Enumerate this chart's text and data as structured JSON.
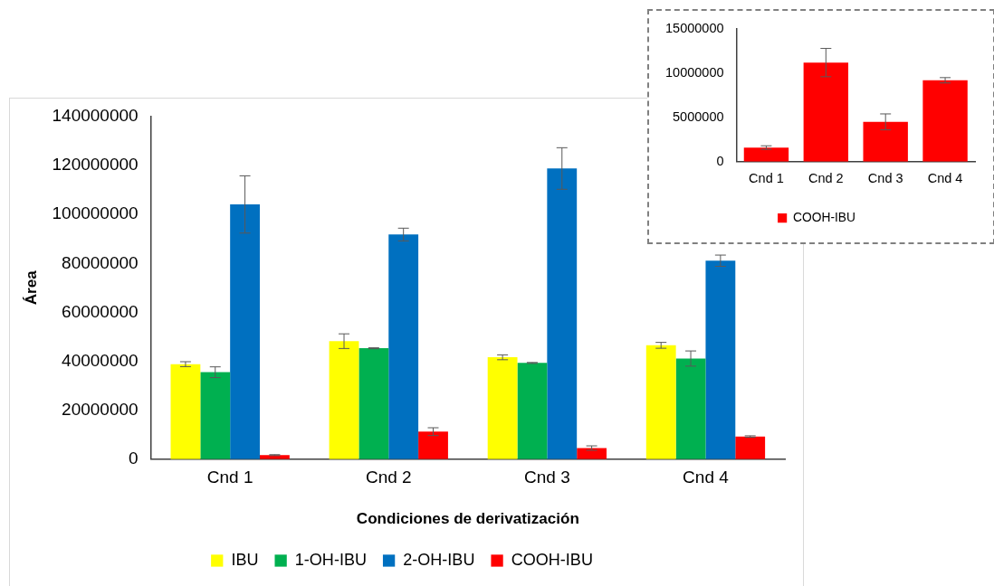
{
  "chart_data": [
    {
      "type": "bar",
      "xlabel": "Condiciones de derivatización",
      "ylabel": "Área",
      "categories": [
        "Cnd 1",
        "Cnd 2",
        "Cnd 3",
        "Cnd 4"
      ],
      "series": [
        {
          "name": "IBU",
          "color": "#ffff00",
          "values": [
            38800000,
            48200000,
            41600000,
            46500000
          ],
          "errors": [
            1000000,
            3000000,
            1000000,
            1200000
          ]
        },
        {
          "name": "1-OH-IBU",
          "color": "#00b050",
          "values": [
            35500000,
            45300000,
            39300000,
            41100000
          ],
          "errors": [
            2200000,
            200000,
            200000,
            3100000
          ]
        },
        {
          "name": "2-OH-IBU",
          "color": "#0070c0",
          "values": [
            104100000,
            91800000,
            118800000,
            81100000
          ],
          "errors": [
            11700000,
            2600000,
            8500000,
            2300000
          ]
        },
        {
          "name": "COOH-IBU",
          "color": "#ff0000",
          "values": [
            1600000,
            11200000,
            4500000,
            9200000
          ],
          "errors": [
            200000,
            1600000,
            900000,
            300000
          ]
        }
      ],
      "ylim": [
        0,
        140000000
      ],
      "yticks": [
        0,
        20000000,
        40000000,
        60000000,
        80000000,
        100000000,
        120000000,
        140000000
      ],
      "grid": false,
      "legend": "bottom"
    },
    {
      "type": "bar",
      "categories": [
        "Cnd 1",
        "Cnd 2",
        "Cnd 3",
        "Cnd 4"
      ],
      "series": [
        {
          "name": "COOH-IBU",
          "color": "#ff0000",
          "values": [
            1600000,
            11200000,
            4500000,
            9200000
          ],
          "errors": [
            200000,
            1600000,
            900000,
            300000
          ]
        }
      ],
      "ylim": [
        0,
        15000000
      ],
      "yticks": [
        0,
        5000000,
        10000000,
        15000000
      ],
      "grid": false,
      "legend": "bottom"
    }
  ]
}
